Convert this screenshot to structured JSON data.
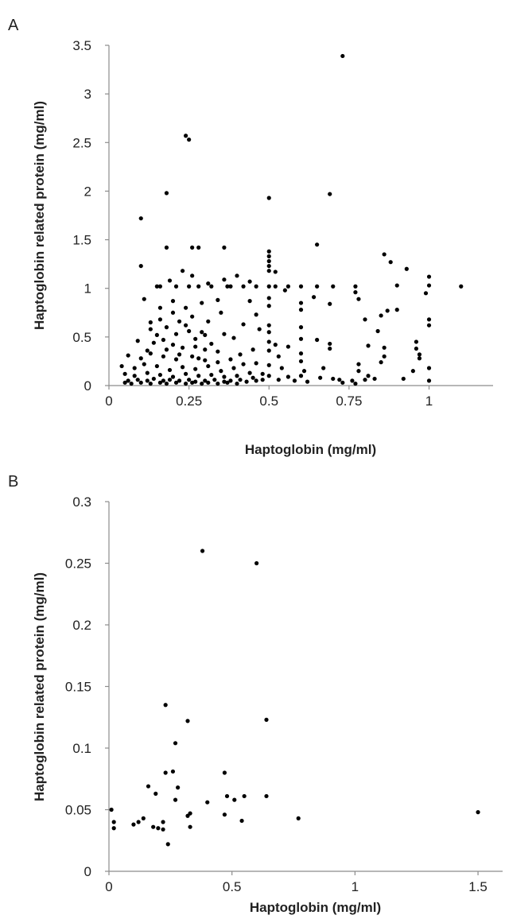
{
  "chart_data": [
    {
      "panel": "A",
      "type": "scatter",
      "xlabel": "Haptoglobin (mg/ml)",
      "ylabel": "Haptoglobin related protein (mg/ml)",
      "xlim": [
        0,
        1.2
      ],
      "ylim": [
        0,
        3.5
      ],
      "xticks": [
        0,
        0.25,
        0.5,
        0.75,
        1
      ],
      "xtick_labels": [
        "0",
        "0.25",
        "0.5",
        "0.75",
        "1"
      ],
      "yticks": [
        0,
        0.5,
        1,
        1.5,
        2,
        2.5,
        3,
        3.5
      ],
      "ytick_labels": [
        "0",
        "0.5",
        "1",
        "1.5",
        "2",
        "2.5",
        "3",
        "3.5"
      ],
      "grid": false,
      "points": [
        [
          0.73,
          3.39
        ],
        [
          0.24,
          2.57
        ],
        [
          0.25,
          2.53
        ],
        [
          0.18,
          1.98
        ],
        [
          0.69,
          1.97
        ],
        [
          0.5,
          1.93
        ],
        [
          0.1,
          1.72
        ],
        [
          0.18,
          1.42
        ],
        [
          0.26,
          1.42
        ],
        [
          0.28,
          1.42
        ],
        [
          0.36,
          1.42
        ],
        [
          0.65,
          1.45
        ],
        [
          0.5,
          1.38
        ],
        [
          0.5,
          1.33
        ],
        [
          0.5,
          1.28
        ],
        [
          0.5,
          1.23
        ],
        [
          0.5,
          1.18
        ],
        [
          0.86,
          1.35
        ],
        [
          0.88,
          1.27
        ],
        [
          0.93,
          1.2
        ],
        [
          0.1,
          1.23
        ],
        [
          0.23,
          1.18
        ],
        [
          0.26,
          1.13
        ],
        [
          0.19,
          1.08
        ],
        [
          0.15,
          1.02
        ],
        [
          0.16,
          1.02
        ],
        [
          0.21,
          1.02
        ],
        [
          0.25,
          1.02
        ],
        [
          0.28,
          1.02
        ],
        [
          0.32,
          1.02
        ],
        [
          0.37,
          1.02
        ],
        [
          0.38,
          1.02
        ],
        [
          0.42,
          1.02
        ],
        [
          0.46,
          1.02
        ],
        [
          0.5,
          1.02
        ],
        [
          0.52,
          1.02
        ],
        [
          0.56,
          1.02
        ],
        [
          0.6,
          1.02
        ],
        [
          0.65,
          1.02
        ],
        [
          0.7,
          1.02
        ],
        [
          0.77,
          1.02
        ],
        [
          0.9,
          1.03
        ],
        [
          1.0,
          1.12
        ],
        [
          1.0,
          1.03
        ],
        [
          1.1,
          1.02
        ],
        [
          0.31,
          1.05
        ],
        [
          0.36,
          1.09
        ],
        [
          0.4,
          1.13
        ],
        [
          0.44,
          1.07
        ],
        [
          0.52,
          1.17
        ],
        [
          0.55,
          0.98
        ],
        [
          0.11,
          0.89
        ],
        [
          0.2,
          0.87
        ],
        [
          0.29,
          0.85
        ],
        [
          0.34,
          0.88
        ],
        [
          0.44,
          0.87
        ],
        [
          0.5,
          0.9
        ],
        [
          0.5,
          0.82
        ],
        [
          0.6,
          0.85
        ],
        [
          0.6,
          0.78
        ],
        [
          0.64,
          0.91
        ],
        [
          0.69,
          0.84
        ],
        [
          0.77,
          0.96
        ],
        [
          0.78,
          0.89
        ],
        [
          0.99,
          0.95
        ],
        [
          0.87,
          0.77
        ],
        [
          0.9,
          0.78
        ],
        [
          0.85,
          0.72
        ],
        [
          0.16,
          0.68
        ],
        [
          0.22,
          0.66
        ],
        [
          0.31,
          0.66
        ],
        [
          0.42,
          0.63
        ],
        [
          0.47,
          0.58
        ],
        [
          0.6,
          0.6
        ],
        [
          0.65,
          0.47
        ],
        [
          0.8,
          0.68
        ],
        [
          0.84,
          0.56
        ],
        [
          1.0,
          0.68
        ],
        [
          1.0,
          0.62
        ],
        [
          0.13,
          0.58
        ],
        [
          0.18,
          0.6
        ],
        [
          0.25,
          0.56
        ],
        [
          0.29,
          0.55
        ],
        [
          0.36,
          0.53
        ],
        [
          0.39,
          0.49
        ],
        [
          0.5,
          0.62
        ],
        [
          0.5,
          0.55
        ],
        [
          0.5,
          0.45
        ],
        [
          0.52,
          0.42
        ],
        [
          0.56,
          0.4
        ],
        [
          0.6,
          0.48
        ],
        [
          0.69,
          0.43
        ],
        [
          0.69,
          0.38
        ],
        [
          0.81,
          0.41
        ],
        [
          0.86,
          0.39
        ],
        [
          0.96,
          0.45
        ],
        [
          0.96,
          0.38
        ],
        [
          0.97,
          0.32
        ],
        [
          0.97,
          0.28
        ],
        [
          0.09,
          0.46
        ],
        [
          0.14,
          0.44
        ],
        [
          0.2,
          0.42
        ],
        [
          0.23,
          0.39
        ],
        [
          0.27,
          0.4
        ],
        [
          0.3,
          0.37
        ],
        [
          0.34,
          0.35
        ],
        [
          0.41,
          0.32
        ],
        [
          0.45,
          0.37
        ],
        [
          0.5,
          0.36
        ],
        [
          0.53,
          0.3
        ],
        [
          0.6,
          0.33
        ],
        [
          0.6,
          0.25
        ],
        [
          0.86,
          0.3
        ],
        [
          0.85,
          0.24
        ],
        [
          0.78,
          0.22
        ],
        [
          0.06,
          0.31
        ],
        [
          0.1,
          0.28
        ],
        [
          0.13,
          0.33
        ],
        [
          0.17,
          0.3
        ],
        [
          0.21,
          0.27
        ],
        [
          0.26,
          0.3
        ],
        [
          0.3,
          0.26
        ],
        [
          0.34,
          0.24
        ],
        [
          0.38,
          0.27
        ],
        [
          0.42,
          0.22
        ],
        [
          0.46,
          0.23
        ],
        [
          0.5,
          0.21
        ],
        [
          0.54,
          0.18
        ],
        [
          0.61,
          0.15
        ],
        [
          0.67,
          0.18
        ],
        [
          0.78,
          0.15
        ],
        [
          0.81,
          0.1
        ],
        [
          0.83,
          0.07
        ],
        [
          0.95,
          0.15
        ],
        [
          1.0,
          0.18
        ],
        [
          0.04,
          0.2
        ],
        [
          0.08,
          0.18
        ],
        [
          0.11,
          0.22
        ],
        [
          0.15,
          0.2
        ],
        [
          0.19,
          0.16
        ],
        [
          0.23,
          0.19
        ],
        [
          0.27,
          0.17
        ],
        [
          0.31,
          0.2
        ],
        [
          0.35,
          0.15
        ],
        [
          0.39,
          0.18
        ],
        [
          0.44,
          0.13
        ],
        [
          0.48,
          0.12
        ],
        [
          0.5,
          0.1
        ],
        [
          0.56,
          0.09
        ],
        [
          0.6,
          0.1
        ],
        [
          0.66,
          0.08
        ],
        [
          0.7,
          0.07
        ],
        [
          0.72,
          0.06
        ],
        [
          0.76,
          0.05
        ],
        [
          0.8,
          0.06
        ],
        [
          0.92,
          0.07
        ],
        [
          1.0,
          0.05
        ],
        [
          0.05,
          0.12
        ],
        [
          0.08,
          0.1
        ],
        [
          0.12,
          0.13
        ],
        [
          0.16,
          0.11
        ],
        [
          0.2,
          0.09
        ],
        [
          0.24,
          0.12
        ],
        [
          0.28,
          0.1
        ],
        [
          0.32,
          0.11
        ],
        [
          0.36,
          0.09
        ],
        [
          0.4,
          0.1
        ],
        [
          0.45,
          0.08
        ],
        [
          0.53,
          0.06
        ],
        [
          0.58,
          0.05
        ],
        [
          0.62,
          0.04
        ],
        [
          0.73,
          0.03
        ],
        [
          0.77,
          0.02
        ],
        [
          0.06,
          0.05
        ],
        [
          0.09,
          0.06
        ],
        [
          0.12,
          0.05
        ],
        [
          0.14,
          0.07
        ],
        [
          0.17,
          0.05
        ],
        [
          0.19,
          0.06
        ],
        [
          0.22,
          0.05
        ],
        [
          0.25,
          0.06
        ],
        [
          0.27,
          0.04
        ],
        [
          0.3,
          0.05
        ],
        [
          0.33,
          0.06
        ],
        [
          0.36,
          0.04
        ],
        [
          0.38,
          0.05
        ],
        [
          0.41,
          0.06
        ],
        [
          0.43,
          0.04
        ],
        [
          0.46,
          0.05
        ],
        [
          0.48,
          0.06
        ],
        [
          0.05,
          0.03
        ],
        [
          0.07,
          0.02
        ],
        [
          0.1,
          0.03
        ],
        [
          0.13,
          0.02
        ],
        [
          0.16,
          0.03
        ],
        [
          0.18,
          0.02
        ],
        [
          0.21,
          0.03
        ],
        [
          0.24,
          0.02
        ],
        [
          0.26,
          0.03
        ],
        [
          0.29,
          0.02
        ],
        [
          0.31,
          0.03
        ],
        [
          0.34,
          0.02
        ],
        [
          0.37,
          0.03
        ],
        [
          0.4,
          0.02
        ],
        [
          0.13,
          0.65
        ],
        [
          0.15,
          0.52
        ],
        [
          0.17,
          0.47
        ],
        [
          0.21,
          0.53
        ],
        [
          0.24,
          0.62
        ],
        [
          0.27,
          0.48
        ],
        [
          0.18,
          0.37
        ],
        [
          0.12,
          0.36
        ],
        [
          0.26,
          0.71
        ],
        [
          0.35,
          0.75
        ],
        [
          0.46,
          0.73
        ],
        [
          0.2,
          0.75
        ],
        [
          0.16,
          0.8
        ],
        [
          0.24,
          0.8
        ],
        [
          0.3,
          0.52
        ],
        [
          0.32,
          0.43
        ],
        [
          0.22,
          0.32
        ],
        [
          0.28,
          0.28
        ]
      ]
    },
    {
      "panel": "B",
      "type": "scatter",
      "xlabel": "Haptoglobin (mg/ml)",
      "ylabel": "Haptoglobin related protein (mg/ml)",
      "xlim": [
        0,
        1.6
      ],
      "ylim": [
        0,
        0.3
      ],
      "xticks": [
        0,
        0.5,
        1,
        1.5
      ],
      "xtick_labels": [
        "0",
        "0.5",
        "1",
        "1.5"
      ],
      "yticks": [
        0,
        0.05,
        0.1,
        0.15,
        0.2,
        0.25,
        0.3
      ],
      "ytick_labels": [
        "0",
        "0.05",
        "0.1",
        "0.15",
        "0.2",
        "0.25",
        "0.3"
      ],
      "grid": false,
      "points": [
        [
          0.38,
          0.26
        ],
        [
          0.6,
          0.25
        ],
        [
          0.23,
          0.135
        ],
        [
          0.64,
          0.123
        ],
        [
          0.32,
          0.122
        ],
        [
          0.27,
          0.104
        ],
        [
          0.26,
          0.081
        ],
        [
          0.23,
          0.08
        ],
        [
          0.47,
          0.08
        ],
        [
          0.16,
          0.069
        ],
        [
          0.28,
          0.068
        ],
        [
          0.19,
          0.063
        ],
        [
          0.48,
          0.061
        ],
        [
          0.64,
          0.061
        ],
        [
          0.55,
          0.061
        ],
        [
          0.27,
          0.058
        ],
        [
          0.4,
          0.056
        ],
        [
          0.51,
          0.058
        ],
        [
          0.01,
          0.05
        ],
        [
          0.33,
          0.047
        ],
        [
          0.32,
          0.045
        ],
        [
          1.5,
          0.048
        ],
        [
          0.47,
          0.046
        ],
        [
          0.14,
          0.043
        ],
        [
          0.77,
          0.043
        ],
        [
          0.54,
          0.041
        ],
        [
          0.02,
          0.04
        ],
        [
          0.12,
          0.04
        ],
        [
          0.22,
          0.04
        ],
        [
          0.1,
          0.038
        ],
        [
          0.18,
          0.036
        ],
        [
          0.33,
          0.036
        ],
        [
          0.02,
          0.035
        ],
        [
          0.2,
          0.035
        ],
        [
          0.22,
          0.034
        ],
        [
          0.24,
          0.022
        ]
      ]
    }
  ],
  "labels": {
    "panel_a": "A",
    "panel_b": "B"
  }
}
